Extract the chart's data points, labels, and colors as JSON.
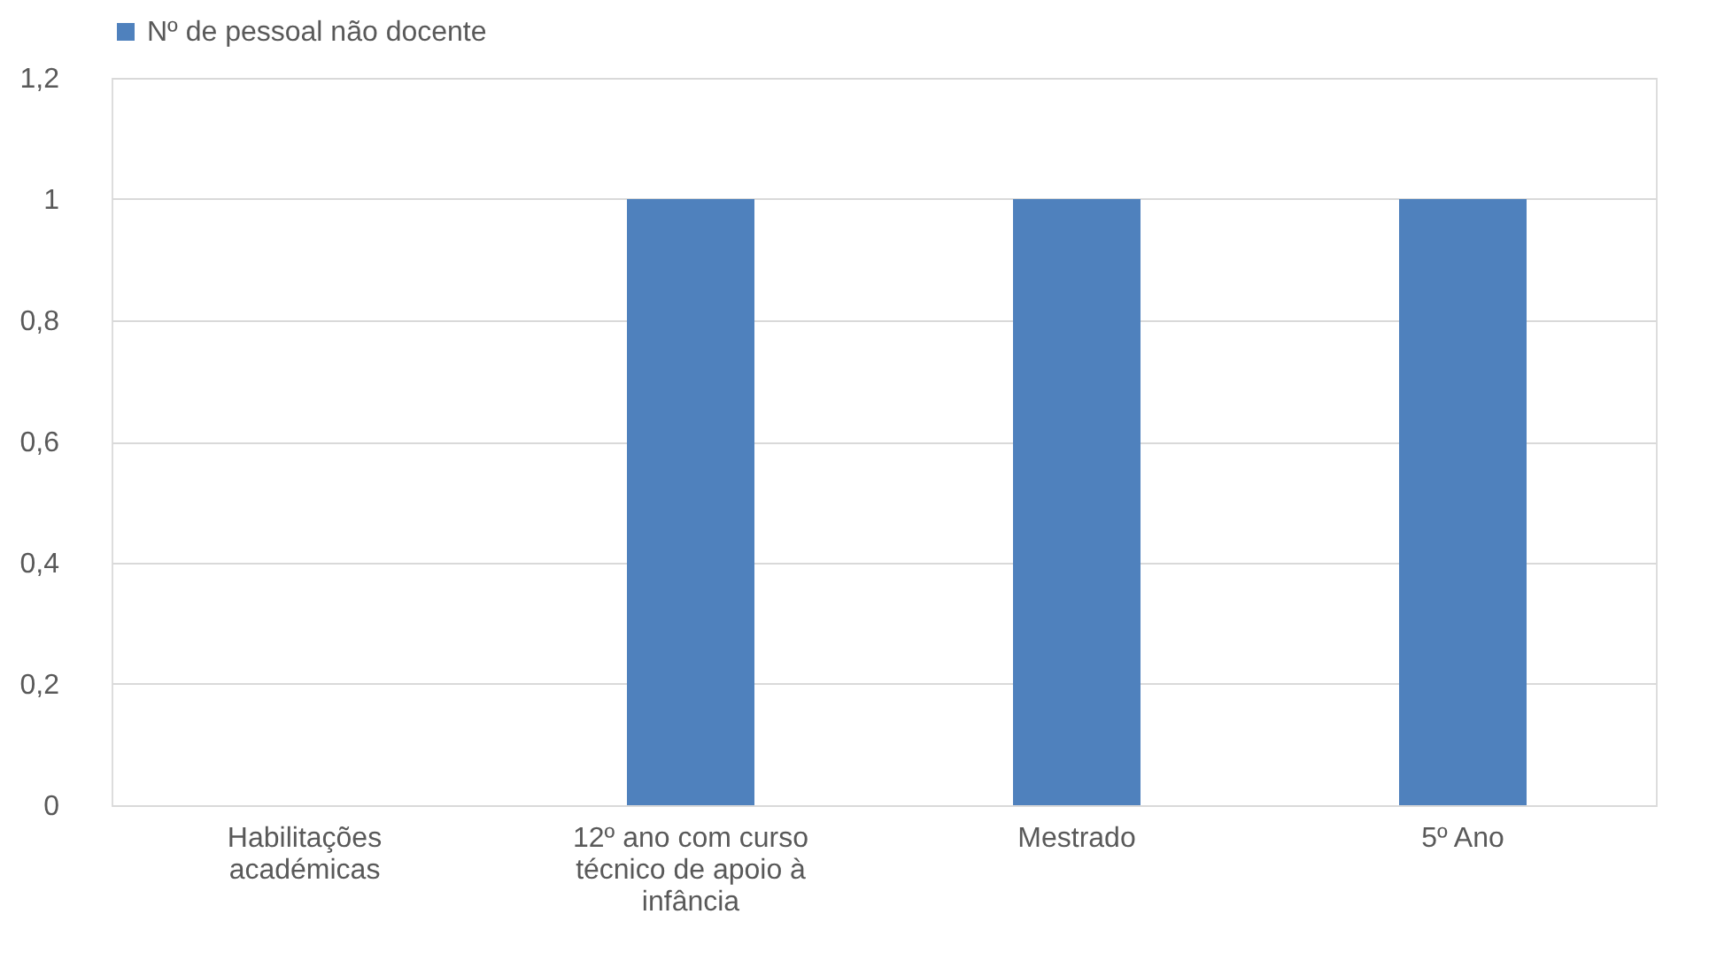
{
  "chart_data": {
    "type": "bar",
    "categories": [
      "Habilitações académicas",
      "12º ano com curso técnico de apoio à infância",
      "Mestrado",
      "5º Ano"
    ],
    "series": [
      {
        "name": "Nº de pessoal não docente",
        "color": "#4f81bd",
        "values": [
          null,
          1,
          1,
          1
        ]
      }
    ],
    "ylim": [
      0,
      1.2
    ],
    "yticks": [
      0,
      {
        "value": 0.2,
        "label": "0,2"
      },
      {
        "value": 0.4,
        "label": "0,4"
      },
      {
        "value": 0.6,
        "label": "0,6"
      },
      {
        "value": 0.8,
        "label": "0,8"
      },
      1,
      {
        "value": 1.2,
        "label": "1,2"
      }
    ],
    "grid": "y",
    "legend": "top"
  }
}
